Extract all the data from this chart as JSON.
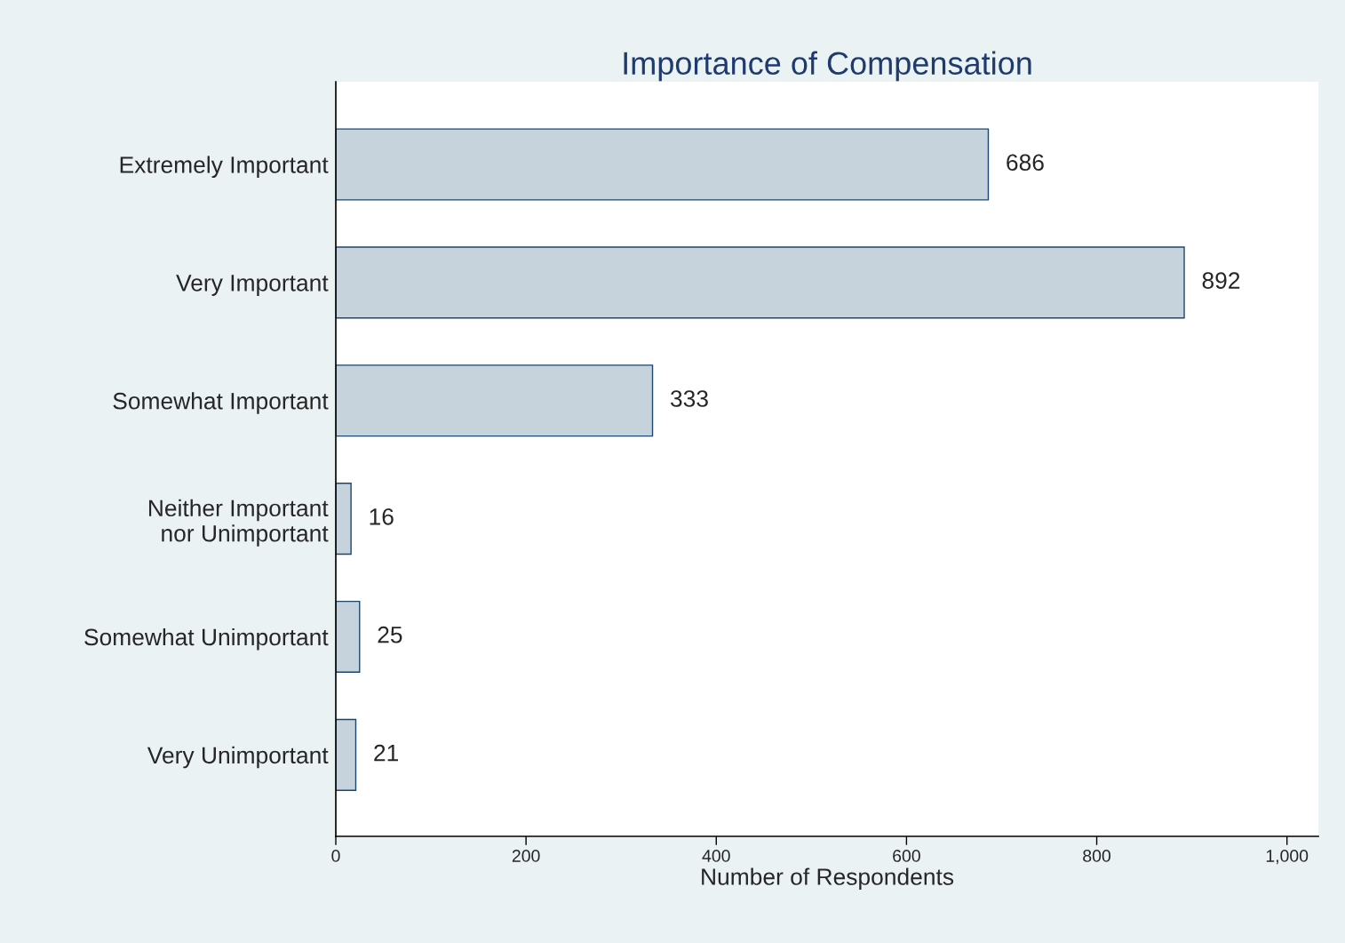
{
  "chart_data": {
    "type": "bar",
    "orientation": "horizontal",
    "title": "Importance of Compensation",
    "xlabel": "Number of Respondents",
    "categories": [
      "Extremely Important",
      "Very Important",
      "Somewhat Important",
      "Neither Important\nnor Unimportant",
      "Somewhat Unimportant",
      "Very Unimportant"
    ],
    "values": [
      686,
      892,
      333,
      16,
      25,
      21
    ],
    "color": "#c6d2dc",
    "data_labels": true,
    "xlim": [
      0,
      1033
    ],
    "xticks": [
      0,
      200,
      400,
      600,
      800,
      {
        "value": 1000,
        "label": "1,000"
      }
    ],
    "grid": false,
    "legend": false
  }
}
